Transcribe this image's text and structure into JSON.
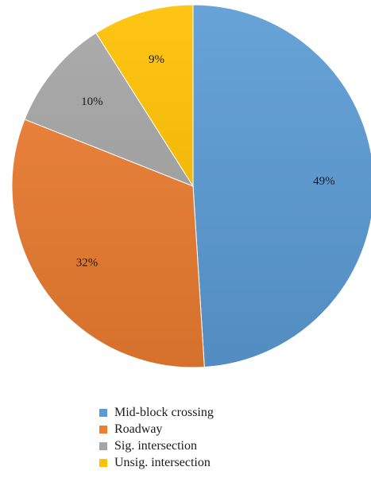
{
  "chart_data": {
    "type": "pie",
    "title": "",
    "legend_position": "bottom",
    "start_angle_deg": 0,
    "direction": "clockwise",
    "slices": [
      {
        "label": "Mid-block crossing",
        "value": 49,
        "value_label": "49%",
        "color": "#5b9bd5"
      },
      {
        "label": "Roadway",
        "value": 32,
        "value_label": "32%",
        "color": "#ed7d31"
      },
      {
        "label": "Sig. intersection",
        "value": 10,
        "value_label": "10%",
        "color": "#a5a5a5"
      },
      {
        "label": "Unsig. intersection",
        "value": 9,
        "value_label": "9%",
        "color": "#ffc000"
      }
    ]
  }
}
